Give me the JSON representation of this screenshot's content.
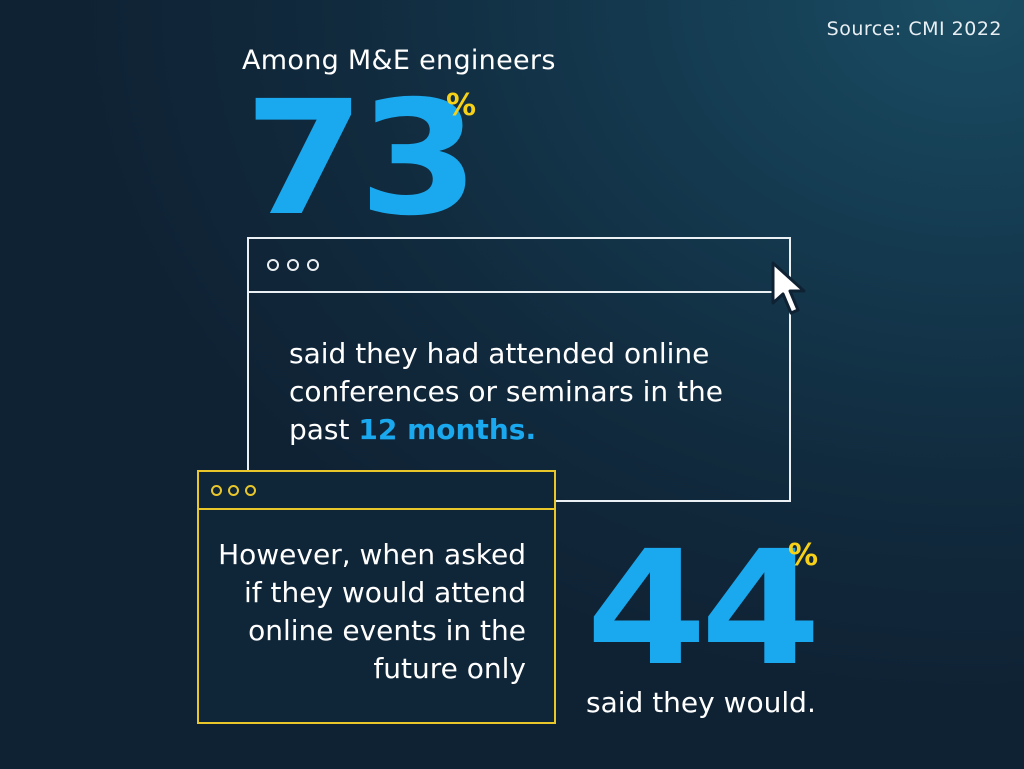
{
  "source": "Source: CMI 2022",
  "intro": "Among M&E engineers",
  "stat1": {
    "value": "73",
    "percent_sign": "%",
    "text_before": "said they had attended online conferences or seminars in the past ",
    "text_highlight": "12 months."
  },
  "stat2": {
    "lead_text": "However, when asked if they would attend online events in the future only",
    "value": "44",
    "percent_sign": "%",
    "text_after": "said they would."
  },
  "icons": {
    "cursor": "mouse-pointer-icon",
    "window_dots": "window-control-dots"
  },
  "colors": {
    "accent_blue": "#1aa8ee",
    "accent_yellow": "#f7d117",
    "background": "#112a3d"
  }
}
